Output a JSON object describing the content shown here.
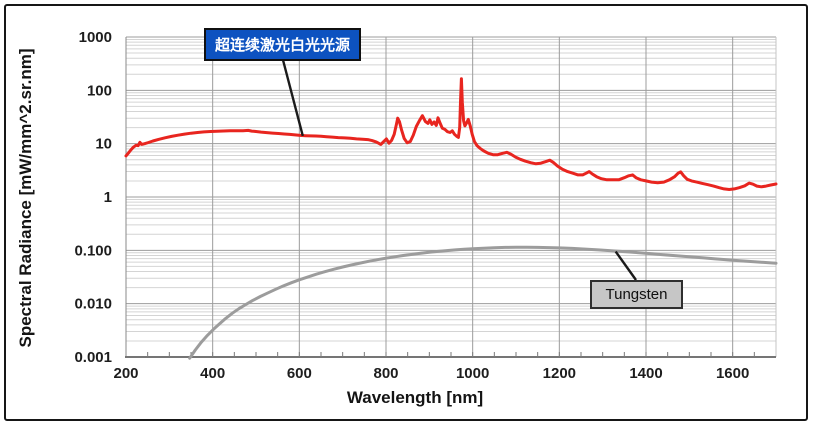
{
  "chart_data": {
    "type": "line",
    "title": "",
    "xlabel": "Wavelength [nm]",
    "ylabel": "Spectral Radiance [mW/mm^2.sr.nm]",
    "x_axis": {
      "min": 200,
      "max": 1700,
      "unit": "nm",
      "major_ticks": [
        200,
        400,
        600,
        800,
        1000,
        1200,
        1400,
        1600
      ],
      "gridlines_at": [
        400,
        600,
        800,
        1000,
        1200,
        1400,
        1600
      ],
      "minor_tick_step_nm": 50
    },
    "y_axis": {
      "scale": "log",
      "min": 0.001,
      "max": 1000,
      "ticks": [
        {
          "value": 1000,
          "label": "1000"
        },
        {
          "value": 100,
          "label": "100"
        },
        {
          "value": 10,
          "label": "10"
        },
        {
          "value": 1,
          "label": "1"
        },
        {
          "value": 0.1,
          "label": "0.100"
        },
        {
          "value": 0.01,
          "label": "0.010"
        },
        {
          "value": 0.001,
          "label": "0.001"
        }
      ]
    },
    "grid": {
      "major_color": "#9c9c9c",
      "minor_color": "#d4d4d4",
      "axis_color": "#757575",
      "grid_on": true
    },
    "series": [
      {
        "id": "supercontinuum",
        "name": "超连续激光白光光源",
        "color": "#e8251f",
        "line_width": 3,
        "points": [
          [
            200,
            5.9
          ],
          [
            205,
            6.6
          ],
          [
            211,
            7.6
          ],
          [
            217,
            8.6
          ],
          [
            223,
            9.3
          ],
          [
            228,
            9.2
          ],
          [
            232,
            10.6
          ],
          [
            236,
            9.7
          ],
          [
            243,
            10.0
          ],
          [
            252,
            10.5
          ],
          [
            262,
            11.2
          ],
          [
            275,
            12.0
          ],
          [
            290,
            12.9
          ],
          [
            305,
            13.7
          ],
          [
            320,
            14.4
          ],
          [
            335,
            15.1
          ],
          [
            350,
            15.7
          ],
          [
            365,
            16.2
          ],
          [
            380,
            16.6
          ],
          [
            395,
            16.9
          ],
          [
            410,
            17.1
          ],
          [
            425,
            17.3
          ],
          [
            440,
            17.4
          ],
          [
            455,
            17.5
          ],
          [
            470,
            17.5
          ],
          [
            482,
            17.7
          ],
          [
            490,
            17.2
          ],
          [
            500,
            16.9
          ],
          [
            512,
            16.5
          ],
          [
            525,
            16.1
          ],
          [
            538,
            15.8
          ],
          [
            552,
            15.5
          ],
          [
            565,
            15.2
          ],
          [
            578,
            14.9
          ],
          [
            590,
            14.6
          ],
          [
            602,
            14.3
          ],
          [
            614,
            14.1
          ],
          [
            626,
            14.0
          ],
          [
            638,
            13.9
          ],
          [
            650,
            13.8
          ],
          [
            663,
            13.5
          ],
          [
            676,
            13.3
          ],
          [
            690,
            13.0
          ],
          [
            704,
            12.8
          ],
          [
            718,
            12.6
          ],
          [
            732,
            12.3
          ],
          [
            746,
            12.1
          ],
          [
            758,
            11.9
          ],
          [
            768,
            11.4
          ],
          [
            778,
            10.7
          ],
          [
            788,
            9.7
          ],
          [
            795,
            11.0
          ],
          [
            801,
            12.3
          ],
          [
            807,
            10.2
          ],
          [
            813,
            11.5
          ],
          [
            819,
            15.0
          ],
          [
            824,
            23.0
          ],
          [
            827,
            30.0
          ],
          [
            831,
            26.0
          ],
          [
            836,
            18.0
          ],
          [
            842,
            12.5
          ],
          [
            849,
            10.4
          ],
          [
            856,
            11.0
          ],
          [
            863,
            14.5
          ],
          [
            870,
            21.0
          ],
          [
            877,
            27.0
          ],
          [
            884,
            33.5
          ],
          [
            891,
            26.0
          ],
          [
            897,
            24.0
          ],
          [
            901,
            28.0
          ],
          [
            906,
            23.0
          ],
          [
            911,
            25.5
          ],
          [
            916,
            22.0
          ],
          [
            920,
            30.5
          ],
          [
            925,
            24.0
          ],
          [
            930,
            19.5
          ],
          [
            936,
            18.5
          ],
          [
            942,
            16.8
          ],
          [
            948,
            16.2
          ],
          [
            953,
            17.4
          ],
          [
            958,
            15.0
          ],
          [
            963,
            13.8
          ],
          [
            967,
            13.1
          ],
          [
            970,
            20.0
          ],
          [
            972,
            60.0
          ],
          [
            974,
            165.0
          ],
          [
            976,
            60.0
          ],
          [
            979,
            27.0
          ],
          [
            982,
            21.5
          ],
          [
            986,
            24.5
          ],
          [
            990,
            28.5
          ],
          [
            994,
            22.0
          ],
          [
            999,
            15.0
          ],
          [
            1004,
            11.0
          ],
          [
            1010,
            9.2
          ],
          [
            1017,
            8.2
          ],
          [
            1026,
            7.3
          ],
          [
            1036,
            6.6
          ],
          [
            1047,
            6.2
          ],
          [
            1058,
            6.2
          ],
          [
            1069,
            6.6
          ],
          [
            1079,
            6.9
          ],
          [
            1089,
            6.3
          ],
          [
            1099,
            5.6
          ],
          [
            1110,
            5.1
          ],
          [
            1122,
            4.7
          ],
          [
            1134,
            4.4
          ],
          [
            1146,
            4.2
          ],
          [
            1157,
            4.3
          ],
          [
            1168,
            4.6
          ],
          [
            1178,
            4.9
          ],
          [
            1187,
            4.4
          ],
          [
            1196,
            3.8
          ],
          [
            1207,
            3.3
          ],
          [
            1219,
            3.0
          ],
          [
            1231,
            2.8
          ],
          [
            1243,
            2.6
          ],
          [
            1254,
            2.6
          ],
          [
            1262,
            2.8
          ],
          [
            1269,
            3.0
          ],
          [
            1276,
            2.7
          ],
          [
            1286,
            2.4
          ],
          [
            1297,
            2.2
          ],
          [
            1310,
            2.1
          ],
          [
            1323,
            2.1
          ],
          [
            1337,
            2.1
          ],
          [
            1350,
            2.3
          ],
          [
            1360,
            2.5
          ],
          [
            1369,
            2.6
          ],
          [
            1377,
            2.3
          ],
          [
            1388,
            2.1
          ],
          [
            1400,
            2.0
          ],
          [
            1413,
            1.9
          ],
          [
            1427,
            1.85
          ],
          [
            1441,
            1.9
          ],
          [
            1454,
            2.1
          ],
          [
            1466,
            2.4
          ],
          [
            1474,
            2.8
          ],
          [
            1480,
            2.95
          ],
          [
            1487,
            2.5
          ],
          [
            1495,
            2.15
          ],
          [
            1505,
            2.0
          ],
          [
            1517,
            1.9
          ],
          [
            1530,
            1.8
          ],
          [
            1543,
            1.7
          ],
          [
            1556,
            1.6
          ],
          [
            1568,
            1.5
          ],
          [
            1580,
            1.42
          ],
          [
            1592,
            1.38
          ],
          [
            1604,
            1.42
          ],
          [
            1616,
            1.5
          ],
          [
            1628,
            1.62
          ],
          [
            1638,
            1.82
          ],
          [
            1647,
            1.74
          ],
          [
            1656,
            1.6
          ],
          [
            1666,
            1.55
          ],
          [
            1677,
            1.6
          ],
          [
            1688,
            1.68
          ],
          [
            1700,
            1.75
          ]
        ]
      },
      {
        "id": "tungsten",
        "name": "Tungsten",
        "color": "#9c9c9c",
        "line_width": 3,
        "points": [
          [
            347,
            0.00095
          ],
          [
            360,
            0.00135
          ],
          [
            374,
            0.0019
          ],
          [
            388,
            0.00255
          ],
          [
            402,
            0.0033
          ],
          [
            416,
            0.0042
          ],
          [
            430,
            0.0053
          ],
          [
            445,
            0.0066
          ],
          [
            460,
            0.008
          ],
          [
            476,
            0.0096
          ],
          [
            492,
            0.0114
          ],
          [
            510,
            0.0136
          ],
          [
            528,
            0.016
          ],
          [
            546,
            0.0187
          ],
          [
            564,
            0.0216
          ],
          [
            582,
            0.0247
          ],
          [
            600,
            0.028
          ],
          [
            620,
            0.0318
          ],
          [
            640,
            0.0358
          ],
          [
            660,
            0.04
          ],
          [
            680,
            0.0443
          ],
          [
            700,
            0.0487
          ],
          [
            720,
            0.0532
          ],
          [
            740,
            0.0577
          ],
          [
            760,
            0.0622
          ],
          [
            780,
            0.0667
          ],
          [
            800,
            0.0712
          ],
          [
            820,
            0.0756
          ],
          [
            840,
            0.0799
          ],
          [
            860,
            0.084
          ],
          [
            880,
            0.088
          ],
          [
            900,
            0.0918
          ],
          [
            920,
            0.0954
          ],
          [
            940,
            0.0988
          ],
          [
            960,
            0.1019
          ],
          [
            980,
            0.1047
          ],
          [
            1000,
            0.1072
          ],
          [
            1025,
            0.1098
          ],
          [
            1050,
            0.1119
          ],
          [
            1075,
            0.1133
          ],
          [
            1100,
            0.1141
          ],
          [
            1125,
            0.1142
          ],
          [
            1150,
            0.1137
          ],
          [
            1175,
            0.1126
          ],
          [
            1200,
            0.111
          ],
          [
            1230,
            0.1085
          ],
          [
            1260,
            0.1055
          ],
          [
            1290,
            0.1021
          ],
          [
            1320,
            0.0984
          ],
          [
            1350,
            0.0945
          ],
          [
            1380,
            0.0906
          ],
          [
            1410,
            0.0867
          ],
          [
            1440,
            0.0829
          ],
          [
            1470,
            0.0792
          ],
          [
            1500,
            0.0757
          ],
          [
            1530,
            0.0723
          ],
          [
            1560,
            0.0692
          ],
          [
            1590,
            0.0662
          ],
          [
            1620,
            0.0635
          ],
          [
            1650,
            0.061
          ],
          [
            1680,
            0.0588
          ],
          [
            1700,
            0.0574
          ]
        ]
      }
    ],
    "annotations": [
      {
        "label": "超连续激光白光光源",
        "box_fill": "#0d52c0",
        "text_color": "#ffffff",
        "border_color": "#101010",
        "target": {
          "nm": 608,
          "value": 14
        }
      },
      {
        "label": "Tungsten",
        "box_fill": "#c6c6c6",
        "text_color": "#101010",
        "border_color": "#2e2e2e",
        "target": {
          "nm": 1330,
          "value": 0.095
        }
      }
    ],
    "legend_position": "none"
  }
}
